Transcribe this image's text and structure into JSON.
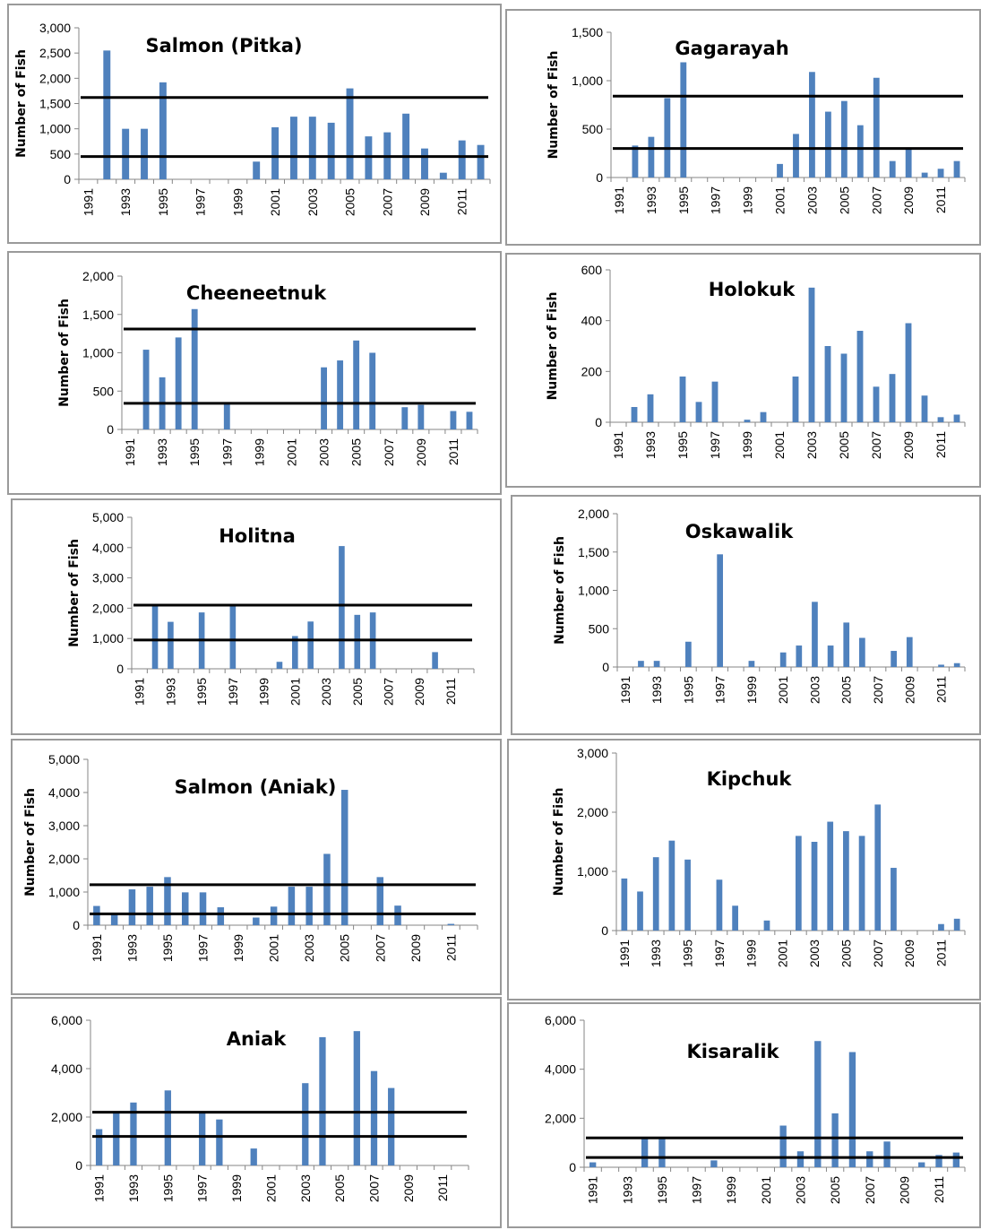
{
  "chart_data": [
    {
      "type": "bar",
      "title": "Salmon  (Pitka)",
      "ylabel": "Number of Fish",
      "ylim": [
        0,
        3000
      ],
      "yticks": [
        "0",
        "500",
        "1,000",
        "1,500",
        "2,000",
        "2,500",
        "3,000"
      ],
      "yticks_values": [
        0,
        500,
        1000,
        1500,
        2000,
        2500,
        3000
      ],
      "x": [
        1991,
        1992,
        1993,
        1994,
        1995,
        1996,
        1997,
        1998,
        1999,
        2000,
        2001,
        2002,
        2003,
        2004,
        2005,
        2006,
        2007,
        2008,
        2009,
        2010,
        2011,
        2012
      ],
      "xtick_labels": [
        "1991",
        "1993",
        "1995",
        "1997",
        "1999",
        "2001",
        "2003",
        "2005",
        "2007",
        "2009",
        "2011"
      ],
      "values": [
        0,
        2550,
        1000,
        1000,
        1920,
        0,
        0,
        0,
        0,
        350,
        1030,
        1240,
        1240,
        1120,
        1800,
        850,
        930,
        1300,
        610,
        130,
        770,
        680
      ],
      "reference_lines": [
        1620,
        450
      ],
      "color": "#4f81bd"
    },
    {
      "type": "bar",
      "title": "Gagarayah",
      "ylabel": "Number of Fish",
      "ylim": [
        0,
        1500
      ],
      "yticks": [
        "0",
        "500",
        "1,000",
        "1,500"
      ],
      "yticks_values": [
        0,
        500,
        1000,
        1500
      ],
      "x": [
        1991,
        1992,
        1993,
        1994,
        1995,
        1996,
        1997,
        1998,
        1999,
        2000,
        2001,
        2002,
        2003,
        2004,
        2005,
        2006,
        2007,
        2008,
        2009,
        2010,
        2011,
        2012
      ],
      "xtick_labels": [
        "1991",
        "1993",
        "1995",
        "1997",
        "1999",
        "2001",
        "2003",
        "2005",
        "2007",
        "2009",
        "2011"
      ],
      "values": [
        0,
        330,
        420,
        820,
        1190,
        0,
        0,
        0,
        0,
        0,
        140,
        450,
        1090,
        680,
        790,
        540,
        1030,
        170,
        290,
        50,
        90,
        170
      ],
      "reference_lines": [
        840,
        300
      ],
      "color": "#4f81bd"
    },
    {
      "type": "bar",
      "title": "Cheeneetnuk",
      "ylabel": "Number of Fish",
      "ylim": [
        0,
        2000
      ],
      "yticks": [
        "0",
        "500",
        "1,000",
        "1,500",
        "2,000"
      ],
      "yticks_values": [
        0,
        500,
        1000,
        1500,
        2000
      ],
      "x": [
        1991,
        1992,
        1993,
        1994,
        1995,
        1996,
        1997,
        1998,
        1999,
        2000,
        2001,
        2002,
        2003,
        2004,
        2005,
        2006,
        2007,
        2008,
        2009,
        2010,
        2011,
        2012
      ],
      "xtick_labels": [
        "1991",
        "1993",
        "1995",
        "1997",
        "1999",
        "2001",
        "2003",
        "2005",
        "2007",
        "2009",
        "2011"
      ],
      "values": [
        0,
        1040,
        680,
        1200,
        1570,
        0,
        330,
        0,
        0,
        0,
        0,
        0,
        810,
        900,
        1160,
        1000,
        0,
        290,
        320,
        0,
        240,
        230
      ],
      "reference_lines": [
        1310,
        340
      ],
      "color": "#4f81bd"
    },
    {
      "type": "bar",
      "title": "Holokuk",
      "ylabel": "Number of Fish",
      "ylim": [
        0,
        600
      ],
      "yticks": [
        "0",
        "200",
        "400",
        "600"
      ],
      "yticks_values": [
        0,
        200,
        400,
        600
      ],
      "x": [
        1991,
        1992,
        1993,
        1994,
        1995,
        1996,
        1997,
        1998,
        1999,
        2000,
        2001,
        2002,
        2003,
        2004,
        2005,
        2006,
        2007,
        2008,
        2009,
        2010,
        2011,
        2012
      ],
      "xtick_labels": [
        "1991",
        "1993",
        "1995",
        "1997",
        "1999",
        "2001",
        "2003",
        "2005",
        "2007",
        "2009",
        "2011"
      ],
      "values": [
        0,
        60,
        110,
        0,
        180,
        80,
        160,
        0,
        10,
        40,
        0,
        180,
        530,
        300,
        270,
        360,
        140,
        190,
        390,
        105,
        20,
        30
      ],
      "reference_lines": [],
      "color": "#4f81bd"
    },
    {
      "type": "bar",
      "title": "Holitna",
      "ylabel": "Number of Fish",
      "ylim": [
        0,
        5000
      ],
      "yticks": [
        "0",
        "1,000",
        "2,000",
        "3,000",
        "4,000",
        "5,000"
      ],
      "yticks_values": [
        0,
        1000,
        2000,
        3000,
        4000,
        5000
      ],
      "x": [
        1991,
        1992,
        1993,
        1994,
        1995,
        1996,
        1997,
        1998,
        1999,
        2000,
        2001,
        2002,
        2003,
        2004,
        2005,
        2006,
        2007,
        2008,
        2009,
        2010,
        2011,
        2012
      ],
      "xtick_labels": [
        "1991",
        "1993",
        "1995",
        "1997",
        "1999",
        "2001",
        "2003",
        "2005",
        "2007",
        "2009",
        "2011"
      ],
      "values": [
        0,
        2080,
        1550,
        0,
        1860,
        0,
        2080,
        0,
        0,
        230,
        1080,
        1560,
        0,
        4050,
        1780,
        1860,
        0,
        0,
        0,
        550,
        0,
        0
      ],
      "reference_lines": [
        2100,
        950
      ],
      "color": "#4f81bd"
    },
    {
      "type": "bar",
      "title": "Oskawalik",
      "ylabel": "Number of Fish",
      "ylim": [
        0,
        2000
      ],
      "yticks": [
        "0",
        "500",
        "1,000",
        "1,500",
        "2,000"
      ],
      "yticks_values": [
        0,
        500,
        1000,
        1500,
        2000
      ],
      "x": [
        1991,
        1992,
        1993,
        1994,
        1995,
        1996,
        1997,
        1998,
        1999,
        2000,
        2001,
        2002,
        2003,
        2004,
        2005,
        2006,
        2007,
        2008,
        2009,
        2010,
        2011,
        2012
      ],
      "xtick_labels": [
        "1991",
        "1993",
        "1995",
        "1997",
        "1999",
        "2001",
        "2003",
        "2005",
        "2007",
        "2009",
        "2011"
      ],
      "values": [
        0,
        80,
        80,
        0,
        330,
        0,
        1470,
        0,
        80,
        0,
        190,
        280,
        850,
        280,
        580,
        380,
        0,
        210,
        390,
        0,
        30,
        50
      ],
      "reference_lines": [],
      "color": "#4f81bd"
    },
    {
      "type": "bar",
      "title": "Salmon (Aniak)",
      "ylabel": "Number of Fish",
      "ylim": [
        0,
        5000
      ],
      "yticks": [
        "0",
        "1,000",
        "2,000",
        "3,000",
        "4,000",
        "5,000"
      ],
      "yticks_values": [
        0,
        1000,
        2000,
        3000,
        4000,
        5000
      ],
      "x": [
        1991,
        1992,
        1993,
        1994,
        1995,
        1996,
        1997,
        1998,
        1999,
        2000,
        2001,
        2002,
        2003,
        2004,
        2005,
        2006,
        2007,
        2008,
        2009,
        2010,
        2011,
        2012
      ],
      "xtick_labels": [
        "1991",
        "1993",
        "1995",
        "1997",
        "1999",
        "2001",
        "2003",
        "2005",
        "2007",
        "2009",
        "2011"
      ],
      "values": [
        580,
        330,
        1080,
        1160,
        1450,
        990,
        990,
        540,
        0,
        230,
        560,
        1160,
        1160,
        2150,
        4080,
        0,
        1450,
        590,
        0,
        0,
        40,
        0
      ],
      "reference_lines": [
        1220,
        340
      ],
      "color": "#4f81bd"
    },
    {
      "type": "bar",
      "title": "Kipchuk",
      "ylabel": "Number of Fish",
      "ylim": [
        0,
        3000
      ],
      "yticks": [
        "0",
        "1,000",
        "2,000",
        "3,000"
      ],
      "yticks_values": [
        0,
        1000,
        2000,
        3000
      ],
      "x": [
        1991,
        1992,
        1993,
        1994,
        1995,
        1996,
        1997,
        1998,
        1999,
        2000,
        2001,
        2002,
        2003,
        2004,
        2005,
        2006,
        2007,
        2008,
        2009,
        2010,
        2011,
        2012
      ],
      "xtick_labels": [
        "1991",
        "1993",
        "1995",
        "1997",
        "1999",
        "2001",
        "2003",
        "2005",
        "2007",
        "2009",
        "2011"
      ],
      "values": [
        880,
        660,
        1240,
        1520,
        1200,
        0,
        860,
        420,
        0,
        170,
        0,
        1600,
        1500,
        1840,
        1680,
        1600,
        2130,
        1060,
        0,
        0,
        110,
        200
      ],
      "reference_lines": [],
      "color": "#4f81bd"
    },
    {
      "type": "bar",
      "title": "Aniak",
      "ylabel": "",
      "ylim": [
        0,
        6000
      ],
      "yticks": [
        "0",
        "2,000",
        "4,000",
        "6,000"
      ],
      "yticks_values": [
        0,
        2000,
        4000,
        6000
      ],
      "x": [
        1991,
        1992,
        1993,
        1994,
        1995,
        1996,
        1997,
        1998,
        1999,
        2000,
        2001,
        2002,
        2003,
        2004,
        2005,
        2006,
        2007,
        2008,
        2009,
        2010,
        2011,
        2012
      ],
      "xtick_labels": [
        "1991",
        "1993",
        "1995",
        "1997",
        "1999",
        "2001",
        "2003",
        "2005",
        "2007",
        "2009",
        "2011"
      ],
      "values": [
        1500,
        2200,
        2600,
        0,
        3100,
        0,
        2200,
        1900,
        0,
        700,
        0,
        0,
        3400,
        5300,
        0,
        5550,
        3900,
        3200,
        0,
        0,
        0,
        0
      ],
      "reference_lines": [
        2200,
        1200
      ],
      "color": "#4f81bd"
    },
    {
      "type": "bar",
      "title": "Kisaralik",
      "ylabel": "",
      "ylim": [
        0,
        6000
      ],
      "yticks": [
        "0",
        "2,000",
        "4,000",
        "6,000"
      ],
      "yticks_values": [
        0,
        2000,
        4000,
        6000
      ],
      "x": [
        1991,
        1992,
        1993,
        1994,
        1995,
        1996,
        1997,
        1998,
        1999,
        2000,
        2001,
        2002,
        2003,
        2004,
        2005,
        2006,
        2007,
        2008,
        2009,
        2010,
        2011,
        2012
      ],
      "xtick_labels": [
        "1991",
        "1993",
        "1995",
        "1997",
        "1999",
        "2001",
        "2003",
        "2005",
        "2007",
        "2009",
        "2011"
      ],
      "values": [
        200,
        0,
        0,
        1150,
        1150,
        0,
        0,
        280,
        0,
        0,
        0,
        1700,
        650,
        5150,
        2200,
        4700,
        650,
        1050,
        0,
        200,
        500,
        600
      ],
      "reference_lines": [
        1200,
        400
      ],
      "color": "#4f81bd"
    }
  ]
}
